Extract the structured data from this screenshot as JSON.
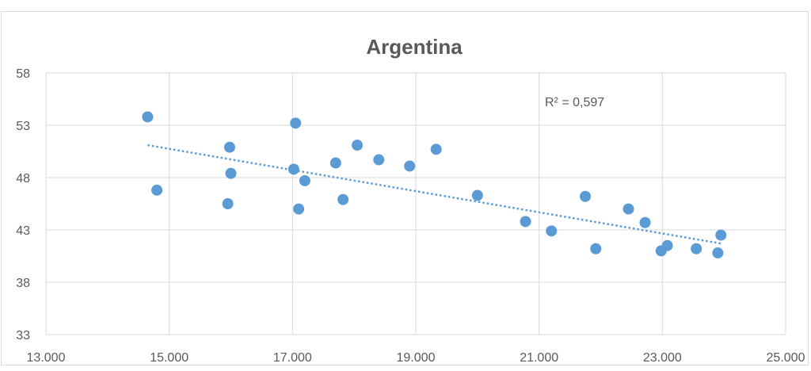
{
  "chart_data": {
    "type": "scatter",
    "title": "Argentina",
    "xlabel": "",
    "ylabel": "",
    "xlim": [
      13000,
      25000
    ],
    "ylim": [
      33,
      58
    ],
    "x_ticks": [
      13000,
      15000,
      17000,
      19000,
      21000,
      23000,
      25000
    ],
    "x_tick_labels": [
      "13.000",
      "15.000",
      "17.000",
      "19.000",
      "21.000",
      "23.000",
      "25.000"
    ],
    "y_ticks": [
      33,
      38,
      43,
      48,
      53,
      58
    ],
    "y_tick_labels": [
      "33",
      "38",
      "43",
      "48",
      "53",
      "58"
    ],
    "grid": true,
    "legend": "none",
    "marker_color": "#5b9bd5",
    "trendline_color": "#5b9bd5",
    "series": [
      {
        "points": [
          [
            14650,
            53.8
          ],
          [
            14800,
            46.8
          ],
          [
            15950,
            45.5
          ],
          [
            15980,
            50.9
          ],
          [
            16000,
            48.4
          ],
          [
            17020,
            48.8
          ],
          [
            17050,
            53.2
          ],
          [
            17100,
            45.0
          ],
          [
            17200,
            47.7
          ],
          [
            17700,
            49.4
          ],
          [
            17820,
            45.9
          ],
          [
            18050,
            51.1
          ],
          [
            18400,
            49.7
          ],
          [
            18900,
            49.1
          ],
          [
            19330,
            50.7
          ],
          [
            20000,
            46.3
          ],
          [
            20780,
            43.8
          ],
          [
            21200,
            42.9
          ],
          [
            21750,
            46.2
          ],
          [
            21920,
            41.2
          ],
          [
            22450,
            45.0
          ],
          [
            22720,
            43.7
          ],
          [
            22980,
            41.0
          ],
          [
            23080,
            41.5
          ],
          [
            23550,
            41.2
          ],
          [
            23900,
            40.8
          ],
          [
            23950,
            42.5
          ]
        ]
      }
    ],
    "trendline": {
      "type": "linear",
      "x": [
        14650,
        23950
      ],
      "y": [
        51.1,
        41.7
      ],
      "style": "dotted"
    },
    "annotation": "R² = 0,597"
  }
}
